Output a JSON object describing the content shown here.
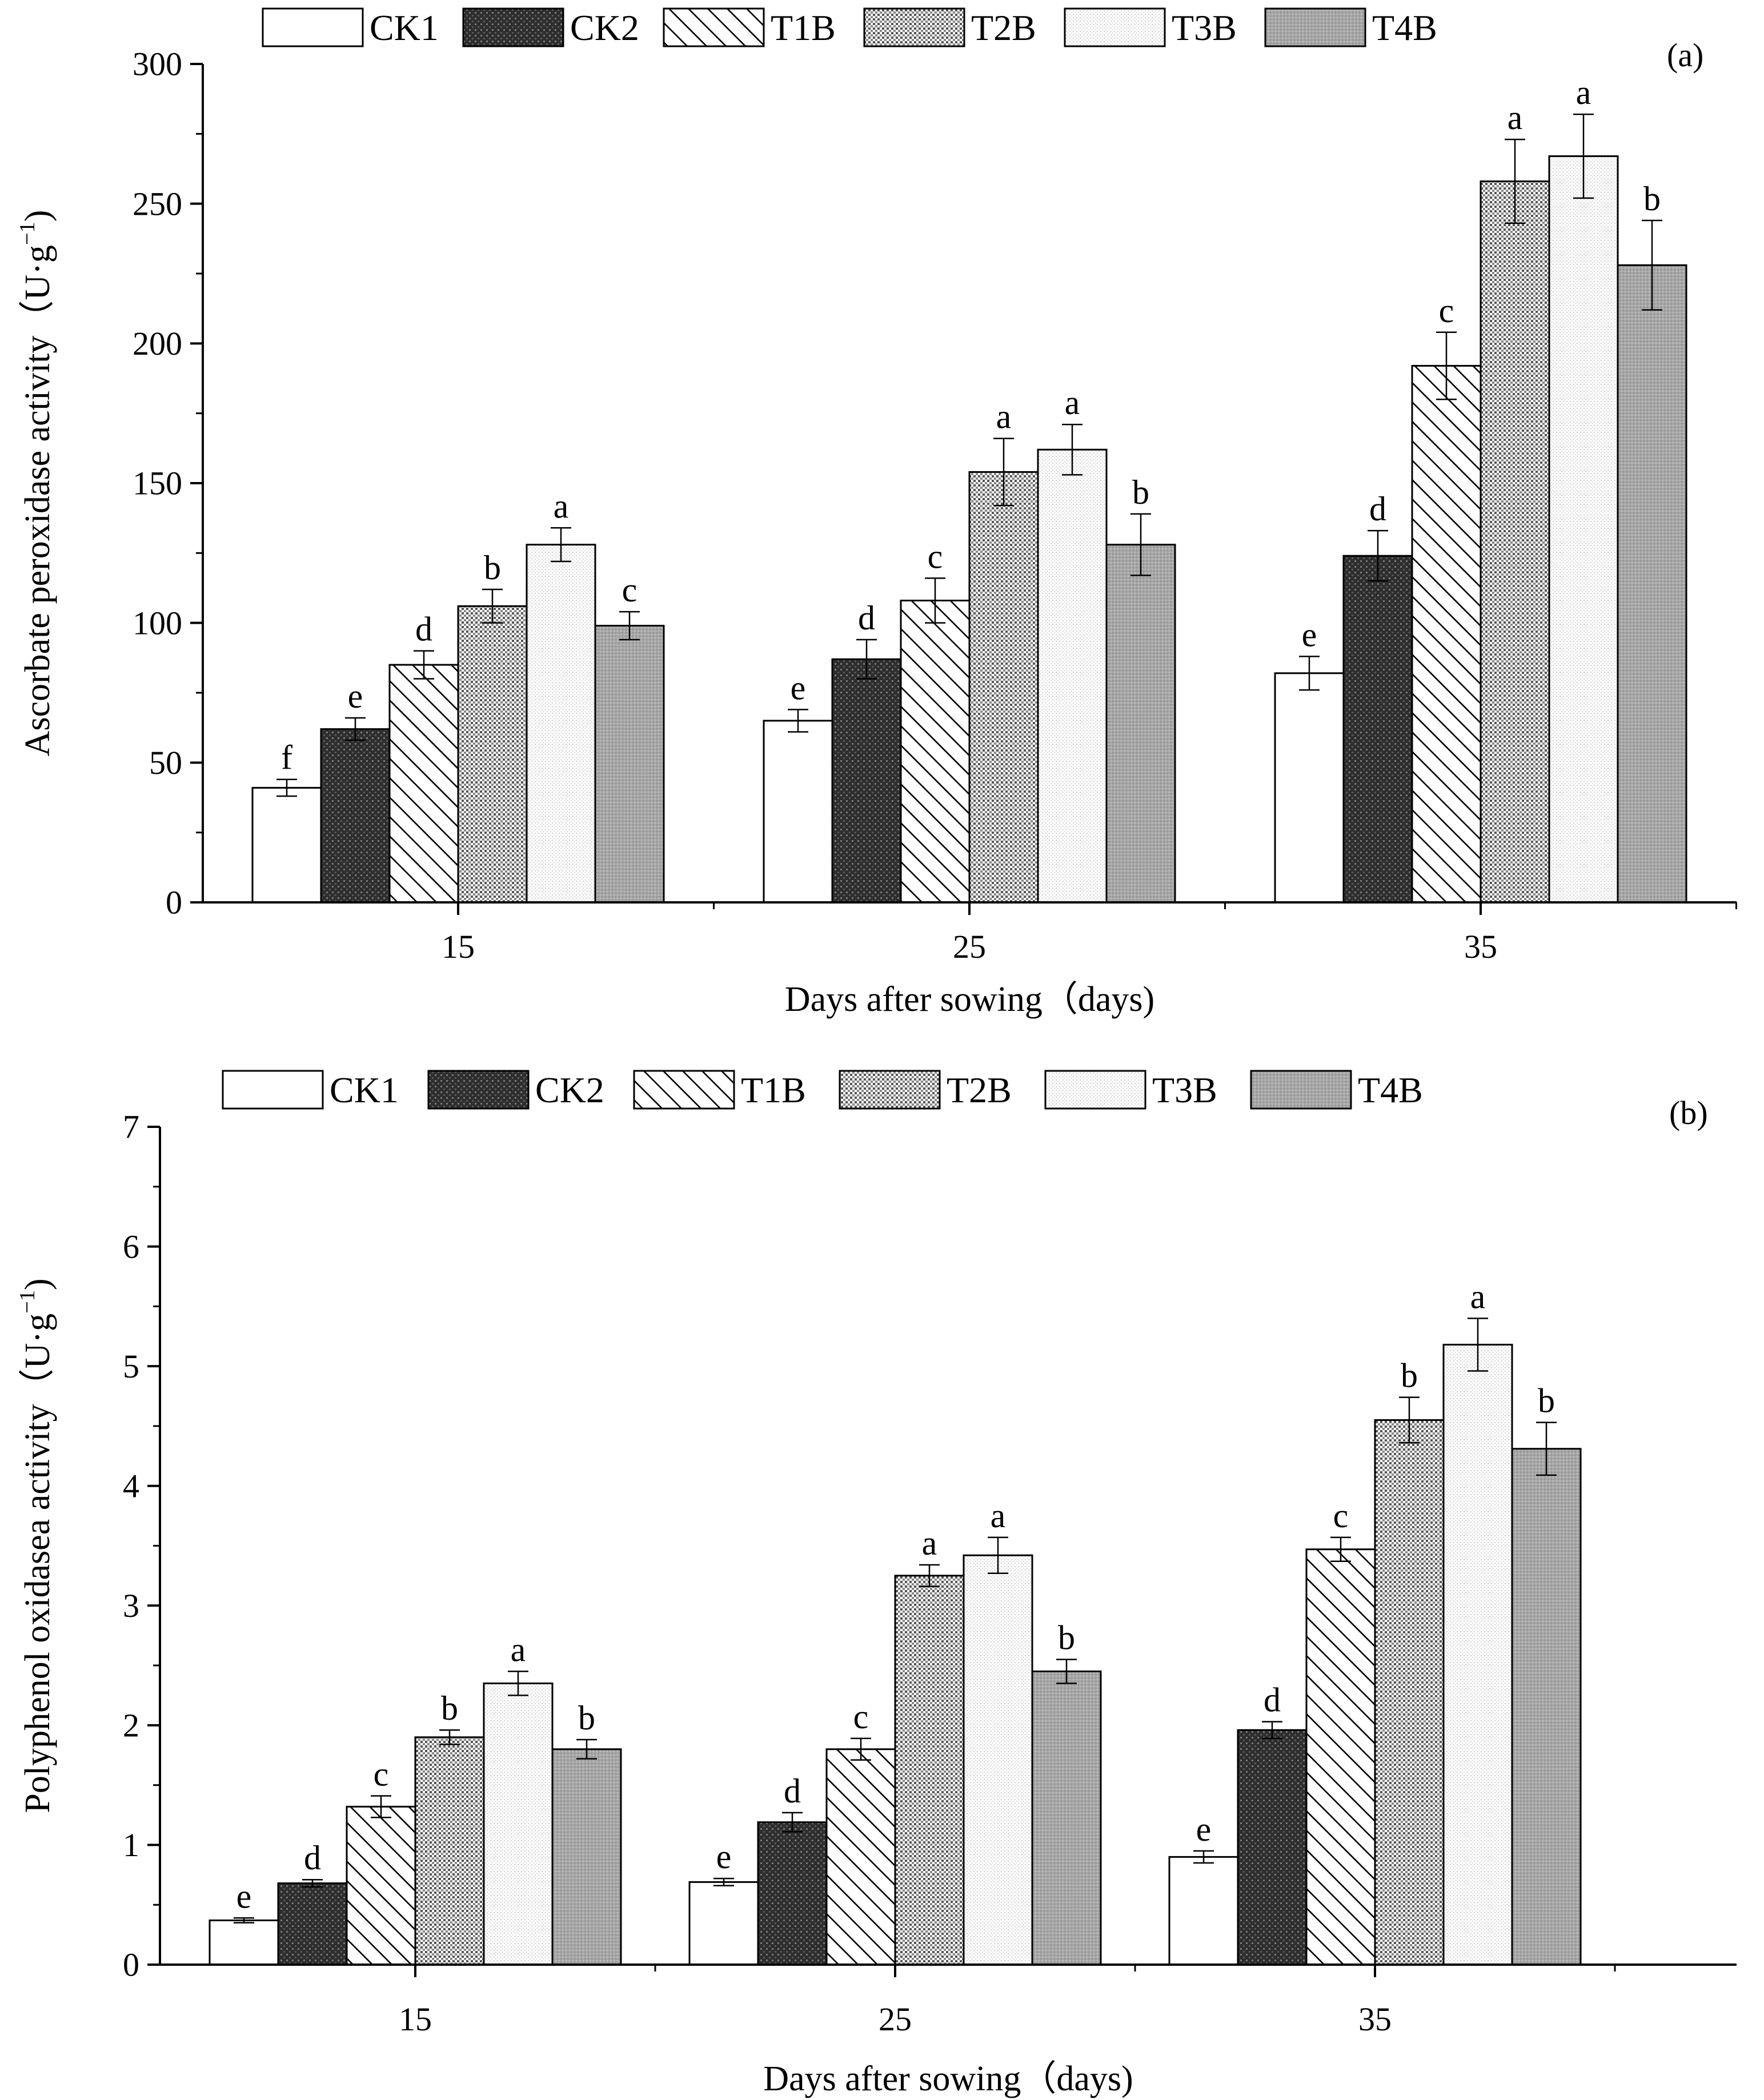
{
  "chart_data": [
    {
      "type": "bar",
      "panel_label": "(a)",
      "categories": [
        "15",
        "25",
        "35"
      ],
      "xlabel": "Days after sowing（days)",
      "ylabel_main": "Ascorbate peroxidase activity（U·g",
      "ylabel_sup": "−1",
      "ylabel_close": ")",
      "ylim": [
        0,
        300
      ],
      "yticks": [
        0,
        50,
        100,
        150,
        200,
        250,
        300
      ],
      "tick_labels": [
        "0",
        "50",
        "100",
        "150",
        "200",
        "250",
        "300"
      ],
      "legend": [
        "CK1",
        "CK2",
        "T1B",
        "T2B",
        "T3B",
        "T4B"
      ],
      "series": [
        {
          "name": "CK1",
          "values": [
            41,
            65,
            82
          ],
          "errors": [
            3,
            4,
            6
          ],
          "letters": [
            "f",
            "e",
            "e"
          ]
        },
        {
          "name": "CK2",
          "values": [
            62,
            87,
            124
          ],
          "errors": [
            4,
            7,
            9
          ],
          "letters": [
            "e",
            "d",
            "d"
          ]
        },
        {
          "name": "T1B",
          "values": [
            85,
            108,
            192
          ],
          "errors": [
            5,
            8,
            12
          ],
          "letters": [
            "d",
            "c",
            "c"
          ]
        },
        {
          "name": "T2B",
          "values": [
            106,
            154,
            258
          ],
          "errors": [
            6,
            12,
            15
          ],
          "letters": [
            "b",
            "a",
            "a"
          ]
        },
        {
          "name": "T3B",
          "values": [
            128,
            162,
            267
          ],
          "errors": [
            6,
            9,
            15
          ],
          "letters": [
            "a",
            "a",
            "a"
          ]
        },
        {
          "name": "T4B",
          "values": [
            99,
            128,
            228
          ],
          "errors": [
            5,
            11,
            16
          ],
          "letters": [
            "c",
            "b",
            "b"
          ]
        }
      ]
    },
    {
      "type": "bar",
      "panel_label": "(b)",
      "categories": [
        "15",
        "25",
        "35"
      ],
      "xlabel": "Days after sowing（days)",
      "ylabel_main": "Polyphenol oxidasea activity（U·g",
      "ylabel_sup": "−1",
      "ylabel_close": ")",
      "ylim": [
        0,
        7
      ],
      "yticks": [
        0,
        1,
        2,
        3,
        4,
        5,
        6,
        7
      ],
      "tick_labels": [
        "0",
        "1",
        "2",
        "3",
        "4",
        "5",
        "6",
        "7"
      ],
      "legend": [
        "CK1",
        "CK2",
        "T1B",
        "T2B",
        "T3B",
        "T4B"
      ],
      "series": [
        {
          "name": "CK1",
          "values": [
            0.37,
            0.69,
            0.9
          ],
          "errors": [
            0.02,
            0.03,
            0.05
          ],
          "letters": [
            "e",
            "e",
            "e"
          ]
        },
        {
          "name": "CK2",
          "values": [
            0.68,
            1.19,
            1.96
          ],
          "errors": [
            0.03,
            0.08,
            0.07
          ],
          "letters": [
            "d",
            "d",
            "d"
          ]
        },
        {
          "name": "T1B",
          "values": [
            1.32,
            1.8,
            3.47
          ],
          "errors": [
            0.09,
            0.09,
            0.1
          ],
          "letters": [
            "c",
            "c",
            "c"
          ]
        },
        {
          "name": "T2B",
          "values": [
            1.9,
            3.25,
            4.55
          ],
          "errors": [
            0.06,
            0.09,
            0.19
          ],
          "letters": [
            "b",
            "a",
            "b"
          ]
        },
        {
          "name": "T3B",
          "values": [
            2.35,
            3.42,
            5.18
          ],
          "errors": [
            0.1,
            0.15,
            0.22
          ],
          "letters": [
            "a",
            "a",
            "a"
          ]
        },
        {
          "name": "T4B",
          "values": [
            1.8,
            2.45,
            4.31
          ],
          "errors": [
            0.08,
            0.1,
            0.22
          ],
          "letters": [
            "b",
            "b",
            "b"
          ]
        }
      ]
    }
  ]
}
